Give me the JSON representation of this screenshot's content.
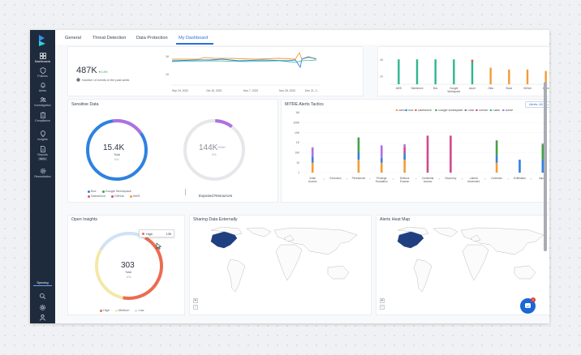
{
  "sidebar": {
    "items": [
      {
        "label": "Dashboards",
        "icon": "dashboard-icon"
      },
      {
        "label": "Policies",
        "icon": "shield-icon"
      },
      {
        "label": "Alerts",
        "icon": "bell-icon"
      },
      {
        "label": "Investigation",
        "icon": "people-icon"
      },
      {
        "label": "Compliance",
        "icon": "clipboard-icon"
      },
      {
        "label": "Insights",
        "icon": "lightbulb-icon"
      },
      {
        "label": "Reports",
        "icon": "report-icon",
        "badge": "BETA"
      },
      {
        "label": "Remediation",
        "icon": "gear-icon"
      }
    ],
    "syncing_label": "Syncing"
  },
  "tabs": [
    "General",
    "Threat Detection",
    "Data Protection",
    "My Dashboard"
  ],
  "active_tab": "My Dashboard",
  "events": {
    "value": "487K",
    "change": "▼2.8%",
    "caption": "Number of events in the past week"
  },
  "timeline": {
    "y_ticks": [
      "1K",
      "10"
    ],
    "x_ticks": [
      "Sep 24, 2022",
      "Oct 15, 2022",
      "Nov 7, 2022",
      "Nov 28, 2022",
      "Dec 21, 2..."
    ]
  },
  "top_bars": {
    "y_ticks": [
      "1K",
      "10"
    ],
    "categories": [
      "AWS",
      "Salesforce",
      "Box",
      "Google Workspace",
      "Azure",
      "Okta",
      "Slack",
      "GitHub",
      "Zoom"
    ]
  },
  "sensitive_data": {
    "title": "Sensitive Data",
    "value": "15.4K",
    "sub": "Total",
    "pct": "0%",
    "legend": [
      "Box",
      "Google Workspace",
      "Salesforce",
      "GitHub",
      "AWS"
    ]
  },
  "exposed": {
    "value": "144K",
    "of": "/204K",
    "pct": "0%",
    "title": "Exposed Resources"
  },
  "mitre": {
    "title": "MITRE Alerts Tactics",
    "filter": "Alerts: All",
    "legend": [
      "AWS",
      "Box",
      "Salesforce",
      "Google Workspace",
      "Okta",
      "GitHub",
      "Slack",
      "Azure"
    ],
    "y_ticks": [
      "1M",
      "100K",
      "10K",
      "1K",
      "100",
      "10",
      "1"
    ],
    "categories": [
      "Initial Access",
      "Execution",
      "Persistence",
      "Privilege Escalation",
      "Defense Evasion",
      "Credential Access",
      "Discovery",
      "Lateral Movement",
      "Collection",
      "Exfiltration",
      "Impact"
    ]
  },
  "insights": {
    "title": "Open Insights",
    "value": "303",
    "sub": "Total",
    "pct": "0%",
    "tooltip_label": "High",
    "tooltip_value": "135",
    "legend": [
      "High",
      "Medium",
      "Low"
    ]
  },
  "sharing": {
    "title": "Sharing Data Externally"
  },
  "heatmap": {
    "title": "Alerts Heat Map"
  },
  "colors": {
    "accent": "#2b73d6",
    "aws": "#f29c38",
    "box": "#2e82e0",
    "salesforce": "#e05b5b",
    "google": "#43a047",
    "okta": "#7c7c7c",
    "github": "#d04a8b",
    "slack": "#2fb58f",
    "azure": "#b070e0",
    "high": "#ec6b52",
    "medium": "#f3e8a8",
    "low": "#cfe3f8"
  },
  "chart_data": [
    {
      "type": "bar",
      "title": "",
      "categories": [
        "AWS",
        "Salesforce",
        "Box",
        "Google Workspace",
        "Azure",
        "Okta",
        "Slack",
        "GitHub",
        "Zoom"
      ],
      "values": [
        1000,
        1000,
        1000,
        1000,
        900,
        100,
        60,
        60,
        40
      ],
      "ylim": [
        1,
        10000
      ],
      "log_scale": true
    },
    {
      "type": "bar",
      "title": "MITRE Alerts Tactics",
      "categories": [
        "Initial Access",
        "Execution",
        "Persistence",
        "Privilege Escalation",
        "Defense Evasion",
        "Credential Access",
        "Discovery",
        "Lateral Movement",
        "Collection",
        "Exfiltration",
        "Impact"
      ],
      "series": [
        {
          "name": "AWS",
          "values": [
            10,
            0,
            20,
            10,
            20,
            0,
            0,
            0,
            10,
            0,
            0
          ]
        },
        {
          "name": "Box",
          "values": [
            30,
            0,
            100,
            20,
            60,
            0,
            0,
            0,
            40,
            20,
            20
          ]
        },
        {
          "name": "Salesforce",
          "values": [
            0,
            0,
            0,
            0,
            0,
            0,
            0,
            0,
            0,
            0,
            0
          ]
        },
        {
          "name": "Google Workspace",
          "values": [
            0,
            0,
            3000,
            0,
            0,
            0,
            0,
            0,
            1500,
            0,
            600
          ]
        },
        {
          "name": "GitHub",
          "values": [
            0,
            0,
            0,
            0,
            300,
            5000,
            5000,
            0,
            0,
            0,
            0
          ]
        },
        {
          "name": "Azure",
          "values": [
            300,
            0,
            300,
            500,
            300,
            0,
            0,
            0,
            200,
            0,
            200
          ]
        }
      ],
      "ylim": [
        1,
        1000000
      ],
      "log_scale": true,
      "legend_position": "top-right"
    }
  ]
}
